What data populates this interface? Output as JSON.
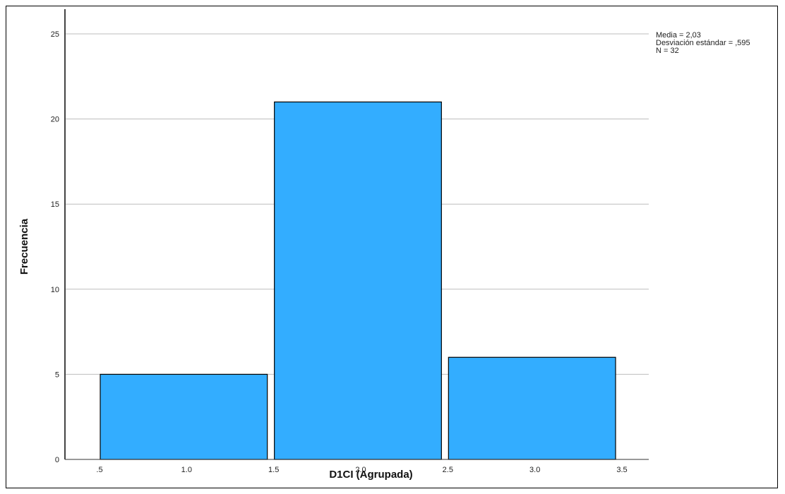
{
  "chart_data": {
    "type": "bar",
    "subtype": "histogram",
    "xlabel": "D1CI (Agrupada)",
    "ylabel": "Frecuencia",
    "bins": [
      {
        "start": 0.5,
        "end": 1.5,
        "value": 5
      },
      {
        "start": 1.5,
        "end": 2.5,
        "value": 21
      },
      {
        "start": 2.5,
        "end": 3.5,
        "value": 6
      }
    ],
    "xlim": [
      0.5,
      3.5
    ],
    "ylim": [
      0,
      25
    ],
    "x_ticks": [
      ".5",
      "1.0",
      "1.5",
      "2.0",
      "2.5",
      "3.0",
      "3.5"
    ],
    "y_ticks": [
      "0",
      "5",
      "10",
      "15",
      "20",
      "25"
    ],
    "grid": "horizontal",
    "bar_color": "#33adff",
    "stats": [
      "Media = 2,03",
      "Desviación estándar = ,595",
      "N = 32"
    ]
  }
}
